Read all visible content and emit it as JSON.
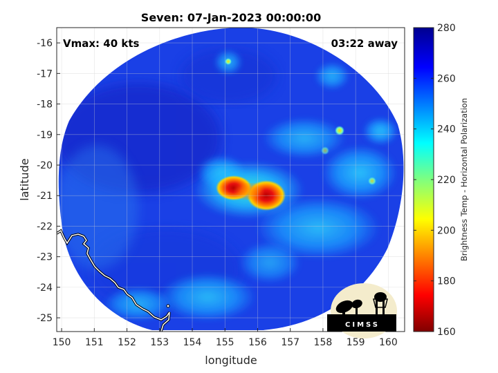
{
  "chart_data": {
    "type": "heatmap",
    "title": "Seven: 07-Jan-2023 00:00:00",
    "xlabel": "longitude",
    "ylabel": "latitude",
    "xlim": [
      149.85,
      160.5
    ],
    "ylim": [
      -25.45,
      -15.5
    ],
    "x_ticks": [
      "150",
      "151",
      "152",
      "153",
      "154",
      "155",
      "156",
      "157",
      "158",
      "159",
      "160"
    ],
    "y_ticks": [
      "-16",
      "-17",
      "-18",
      "-19",
      "-20",
      "-21",
      "-22",
      "-23",
      "-24",
      "-25"
    ],
    "grid": true,
    "annotation_left": "Vmax: 40 kts",
    "annotation_right": "03:22 away",
    "colorbar": {
      "label": "Brightness Temp - Horizontal Polarization",
      "range": [
        160,
        280
      ],
      "ticks": [
        "160",
        "180",
        "200",
        "220",
        "240",
        "260",
        "280"
      ],
      "colormap": "jet"
    },
    "storm_center": {
      "lon": 155.6,
      "lat": -21.0
    },
    "cold_core_min_temp": 175,
    "logo_text": "CIMSS"
  },
  "colors": {
    "background_field": "#1a3fe0",
    "coast_line": "#ffffff",
    "land_fill": "#000000"
  }
}
